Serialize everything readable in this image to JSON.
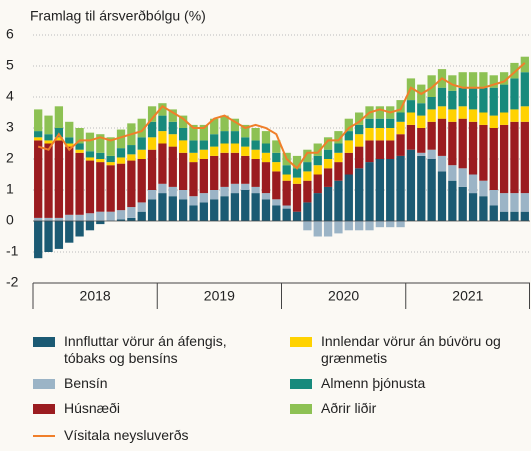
{
  "chart_data": {
    "type": "stacked-bar-line",
    "title": "Framlag til ársverðbólgu (%)",
    "categories": [
      null,
      null,
      null,
      null,
      null,
      null,
      null,
      null,
      null,
      null,
      null,
      null,
      null,
      null,
      null,
      null,
      null,
      null,
      null,
      null,
      null,
      null,
      null,
      null,
      null,
      null,
      null,
      null,
      null,
      null,
      null,
      null,
      null,
      null,
      null,
      null,
      null,
      null,
      null,
      null,
      null,
      null,
      null,
      null,
      null,
      null,
      null,
      null
    ],
    "year_groups": [
      "2018",
      "2019",
      "2020",
      "2021"
    ],
    "ylim": [
      -2,
      6
    ],
    "yticks": [
      -2,
      -1,
      0,
      1,
      2,
      3,
      4,
      5,
      6
    ],
    "grid": true,
    "series": [
      {
        "name": "Innfluttar vörur án áfengis, tóbaks og bensíns",
        "color": "#1b5a73",
        "values": [
          -1.2,
          -1.0,
          -0.9,
          -0.7,
          -0.5,
          -0.3,
          -0.1,
          0.0,
          0.05,
          0.1,
          0.3,
          0.7,
          0.9,
          0.8,
          0.7,
          0.5,
          0.6,
          0.7,
          0.8,
          0.9,
          1.0,
          0.9,
          0.7,
          0.5,
          0.4,
          0.3,
          0.6,
          0.9,
          1.1,
          1.3,
          1.5,
          1.7,
          1.9,
          2.0,
          2.0,
          2.1,
          2.3,
          2.1,
          2.0,
          1.6,
          1.3,
          1.1,
          0.9,
          0.8,
          0.5,
          0.3,
          0.3,
          0.3
        ]
      },
      {
        "name": "Bensín",
        "color": "#9bb4c6",
        "values": [
          0.1,
          0.1,
          0.1,
          0.2,
          0.2,
          0.25,
          0.3,
          0.3,
          0.3,
          0.35,
          0.3,
          0.3,
          0.3,
          0.3,
          0.3,
          0.3,
          0.3,
          0.3,
          0.3,
          0.3,
          0.2,
          0.2,
          0.2,
          0.2,
          0.1,
          0.0,
          -0.3,
          -0.5,
          -0.5,
          -0.4,
          -0.3,
          -0.3,
          -0.3,
          -0.2,
          -0.2,
          -0.2,
          0.0,
          0.1,
          0.3,
          0.5,
          0.5,
          0.6,
          0.6,
          0.5,
          0.5,
          0.6,
          0.6,
          0.6
        ]
      },
      {
        "name": "Húsnæði",
        "color": "#9b1c20",
        "values": [
          2.5,
          2.4,
          2.5,
          2.2,
          2.0,
          1.7,
          1.6,
          1.5,
          1.5,
          1.5,
          1.4,
          1.3,
          1.3,
          1.3,
          1.2,
          1.1,
          1.1,
          1.1,
          1.1,
          1.0,
          0.9,
          0.9,
          1.0,
          0.9,
          0.8,
          0.9,
          0.7,
          0.6,
          0.6,
          0.6,
          0.7,
          0.7,
          0.7,
          0.6,
          0.6,
          0.7,
          0.8,
          0.8,
          0.9,
          1.2,
          1.4,
          1.6,
          1.7,
          1.8,
          2.0,
          2.2,
          2.3,
          2.3
        ]
      },
      {
        "name": "Innlendar vörur án búvöru og grænmetis",
        "color": "#ffd200",
        "values": [
          0.1,
          0.1,
          0.1,
          0.1,
          0.1,
          0.1,
          0.1,
          0.1,
          0.2,
          0.2,
          0.3,
          0.4,
          0.4,
          0.4,
          0.4,
          0.3,
          0.3,
          0.3,
          0.3,
          0.3,
          0.3,
          0.3,
          0.3,
          0.3,
          0.2,
          0.2,
          0.3,
          0.3,
          0.3,
          0.3,
          0.4,
          0.4,
          0.4,
          0.4,
          0.4,
          0.4,
          0.4,
          0.4,
          0.4,
          0.4,
          0.4,
          0.4,
          0.4,
          0.4,
          0.4,
          0.4,
          0.4,
          0.5
        ]
      },
      {
        "name": "Almenn þjónusta",
        "color": "#178a7c",
        "values": [
          0.2,
          0.2,
          0.3,
          0.2,
          0.2,
          0.2,
          0.2,
          0.2,
          0.3,
          0.3,
          0.4,
          0.5,
          0.5,
          0.4,
          0.4,
          0.4,
          0.3,
          0.4,
          0.4,
          0.4,
          0.3,
          0.3,
          0.3,
          0.3,
          0.3,
          0.3,
          0.3,
          0.3,
          0.3,
          0.3,
          0.3,
          0.3,
          0.3,
          0.3,
          0.3,
          0.3,
          0.4,
          0.4,
          0.4,
          0.6,
          0.6,
          0.6,
          0.7,
          0.8,
          0.9,
          0.9,
          1.0,
          1.1
        ]
      },
      {
        "name": "Aðrir liðir",
        "color": "#8dc153",
        "values": [
          0.7,
          0.6,
          0.7,
          0.5,
          0.5,
          0.6,
          0.6,
          0.6,
          0.6,
          0.7,
          0.6,
          0.5,
          0.4,
          0.4,
          0.4,
          0.5,
          0.5,
          0.5,
          0.5,
          0.4,
          0.4,
          0.4,
          0.4,
          0.4,
          0.4,
          0.4,
          0.4,
          0.4,
          0.4,
          0.4,
          0.4,
          0.4,
          0.4,
          0.4,
          0.4,
          0.4,
          0.7,
          0.6,
          0.7,
          0.6,
          0.5,
          0.5,
          0.5,
          0.5,
          0.4,
          0.4,
          0.5,
          0.5
        ]
      }
    ],
    "line": {
      "name": "Vísitala neysluverðs",
      "color": "#f07f2a",
      "values": [
        2.4,
        2.3,
        2.8,
        2.3,
        2.6,
        2.6,
        2.7,
        2.6,
        2.7,
        2.8,
        2.9,
        3.3,
        3.7,
        3.5,
        3.3,
        3.0,
        3.0,
        3.3,
        3.4,
        3.2,
        3.0,
        3.1,
        3.0,
        2.8,
        2.0,
        1.7,
        2.2,
        2.2,
        2.6,
        2.6,
        3.0,
        3.2,
        3.5,
        3.6,
        3.5,
        3.6,
        4.3,
        4.1,
        4.3,
        4.6,
        4.4,
        4.3,
        4.3,
        4.3,
        4.4,
        4.5,
        4.8,
        5.1
      ]
    }
  }
}
